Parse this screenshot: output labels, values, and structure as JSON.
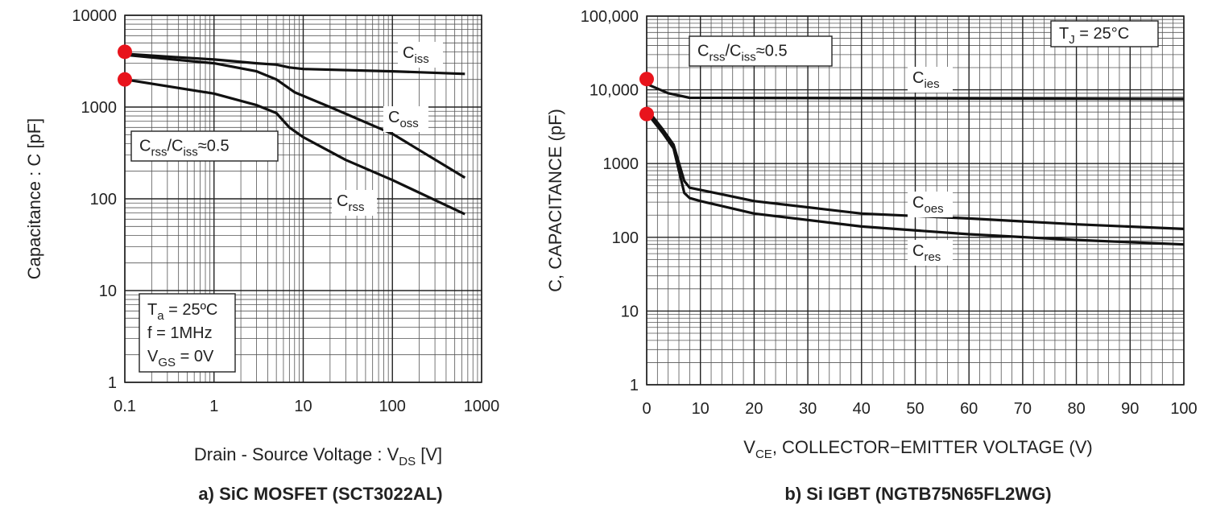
{
  "chart_data": [
    {
      "type": "line",
      "title": "a) SiC MOSFET (SCT3022AL)",
      "xlabel": [
        "Drain - Source Voltage : V",
        "DS",
        " [V]"
      ],
      "ylabel": [
        "Capacitance : C [pF]"
      ],
      "xscale": "log",
      "yscale": "log",
      "grid": true,
      "xlim": [
        0.1,
        1000
      ],
      "xticks": [
        0.1,
        1,
        10,
        100,
        1000
      ],
      "ylim": [
        1,
        10000
      ],
      "yticks": [
        1,
        10,
        100,
        1000,
        10000
      ],
      "series": [
        {
          "label": [
            "C",
            "iss"
          ],
          "color": "#111111",
          "x": [
            0.1,
            0.3,
            1,
            3,
            5,
            7,
            10,
            100,
            650
          ],
          "values": [
            3800,
            3550,
            3300,
            3000,
            2900,
            2700,
            2600,
            2450,
            2300
          ]
        },
        {
          "label": [
            "C",
            "oss"
          ],
          "color": "#111111",
          "x": [
            0.1,
            1,
            3,
            5,
            8,
            20,
            100,
            650
          ],
          "values": [
            3700,
            3000,
            2450,
            2000,
            1450,
            1000,
            510,
            170
          ]
        },
        {
          "label": [
            "C",
            "rss"
          ],
          "color": "#111111",
          "x": [
            0.1,
            1,
            3,
            5,
            7,
            10,
            30,
            100,
            650
          ],
          "values": [
            2000,
            1400,
            1050,
            860,
            600,
            470,
            265,
            160,
            68
          ]
        }
      ],
      "markers": {
        "color": "#e8141c",
        "x": [
          0.1,
          0.1
        ],
        "values": [
          4000,
          2000
        ]
      },
      "annotations": [
        [
          [
            "C",
            "rss",
            "/C",
            "iss",
            "≈0.5"
          ]
        ],
        [
          [
            "T",
            "a",
            " = 25ºC"
          ],
          [
            "f = 1MHz"
          ],
          [
            "V",
            "GS",
            " = 0V"
          ]
        ]
      ]
    },
    {
      "type": "line",
      "title": "b) Si IGBT (NGTB75N65FL2WG)",
      "xlabel": [
        "V",
        "CE",
        ", COLLECTOR−EMITTER VOLTAGE (V)"
      ],
      "ylabel": [
        "C, CAPACITANCE (pF)"
      ],
      "xscale": "linear",
      "yscale": "log",
      "grid": true,
      "xlim": [
        0,
        100
      ],
      "xticks": [
        0,
        10,
        20,
        30,
        40,
        50,
        60,
        70,
        80,
        90,
        100
      ],
      "ylim": [
        1,
        100000
      ],
      "yticks": [
        1,
        10,
        100,
        1000,
        {
          "value": 10000,
          "label": "10,000"
        },
        {
          "value": 100000,
          "label": "100,000"
        }
      ],
      "series": [
        {
          "label": [
            "C",
            "ies"
          ],
          "color": "#111111",
          "x": [
            0,
            4,
            8,
            100
          ],
          "values": [
            12000,
            9000,
            7800,
            7500
          ]
        },
        {
          "label": [
            "C",
            "oes"
          ],
          "color": "#111111",
          "x": [
            0,
            3,
            5,
            7,
            8,
            10,
            20,
            40,
            60,
            80,
            100
          ],
          "values": [
            5500,
            2900,
            1800,
            580,
            470,
            440,
            310,
            210,
            180,
            150,
            130
          ]
        },
        {
          "label": [
            "C",
            "res"
          ],
          "color": "#111111",
          "x": [
            0,
            3,
            5,
            7,
            8,
            10,
            20,
            40,
            60,
            80,
            100
          ],
          "values": [
            4900,
            2600,
            1600,
            400,
            340,
            310,
            210,
            140,
            110,
            92,
            80
          ]
        }
      ],
      "markers": {
        "color": "#e8141c",
        "x": [
          0,
          0
        ],
        "values": [
          14000,
          4700
        ]
      },
      "annotations": [
        [
          [
            "C",
            "rss",
            "/C",
            "iss",
            "≈0.5"
          ]
        ],
        [
          [
            "T",
            "J",
            " = 25°C"
          ]
        ]
      ]
    }
  ]
}
